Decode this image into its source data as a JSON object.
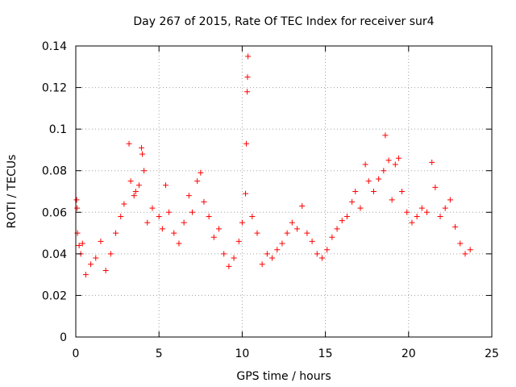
{
  "chart_data": {
    "type": "scatter",
    "title": "Day 267 of 2015, Rate Of TEC Index for receiver sur4",
    "xlabel": "GPS time / hours",
    "ylabel": "ROTI / TECUs",
    "xlim": [
      0,
      25
    ],
    "ylim": [
      0,
      0.14
    ],
    "x_ticks": [
      0,
      5,
      10,
      15,
      20,
      25
    ],
    "x_tick_labels": [
      "0",
      "5",
      "10",
      "15",
      "20",
      "25"
    ],
    "y_ticks": [
      0,
      0.02,
      0.04,
      0.06,
      0.08,
      0.1,
      0.12,
      0.14
    ],
    "y_tick_labels": [
      "0",
      "0.02",
      "0.04",
      "0.06",
      "0.08",
      "0.1",
      "0.12",
      "0.14"
    ],
    "grid": true,
    "marker": "+",
    "color": "#ff0000",
    "series": [
      {
        "name": "ROTI",
        "points": [
          [
            0.05,
            0.066
          ],
          [
            0.08,
            0.062
          ],
          [
            0.1,
            0.05
          ],
          [
            0.2,
            0.044
          ],
          [
            0.3,
            0.04
          ],
          [
            0.4,
            0.045
          ],
          [
            0.6,
            0.03
          ],
          [
            0.9,
            0.035
          ],
          [
            1.2,
            0.038
          ],
          [
            1.5,
            0.046
          ],
          [
            1.8,
            0.032
          ],
          [
            2.1,
            0.04
          ],
          [
            2.4,
            0.05
          ],
          [
            2.7,
            0.058
          ],
          [
            2.9,
            0.064
          ],
          [
            3.2,
            0.093
          ],
          [
            3.3,
            0.075
          ],
          [
            3.5,
            0.068
          ],
          [
            3.6,
            0.07
          ],
          [
            3.8,
            0.073
          ],
          [
            3.95,
            0.091
          ],
          [
            4.0,
            0.088
          ],
          [
            4.1,
            0.08
          ],
          [
            4.3,
            0.055
          ],
          [
            4.6,
            0.062
          ],
          [
            5.0,
            0.058
          ],
          [
            5.2,
            0.052
          ],
          [
            5.4,
            0.073
          ],
          [
            5.6,
            0.06
          ],
          [
            5.9,
            0.05
          ],
          [
            6.2,
            0.045
          ],
          [
            6.5,
            0.055
          ],
          [
            6.8,
            0.068
          ],
          [
            7.0,
            0.06
          ],
          [
            7.3,
            0.075
          ],
          [
            7.5,
            0.079
          ],
          [
            7.7,
            0.065
          ],
          [
            8.0,
            0.058
          ],
          [
            8.3,
            0.048
          ],
          [
            8.6,
            0.052
          ],
          [
            8.9,
            0.04
          ],
          [
            9.2,
            0.034
          ],
          [
            9.5,
            0.038
          ],
          [
            9.8,
            0.046
          ],
          [
            10.0,
            0.055
          ],
          [
            10.2,
            0.069
          ],
          [
            10.25,
            0.093
          ],
          [
            10.3,
            0.118
          ],
          [
            10.32,
            0.125
          ],
          [
            10.35,
            0.135
          ],
          [
            10.6,
            0.058
          ],
          [
            10.9,
            0.05
          ],
          [
            11.2,
            0.035
          ],
          [
            11.5,
            0.04
          ],
          [
            11.8,
            0.038
          ],
          [
            12.1,
            0.042
          ],
          [
            12.4,
            0.045
          ],
          [
            12.7,
            0.05
          ],
          [
            13.0,
            0.055
          ],
          [
            13.3,
            0.052
          ],
          [
            13.6,
            0.063
          ],
          [
            13.9,
            0.05
          ],
          [
            14.2,
            0.046
          ],
          [
            14.5,
            0.04
          ],
          [
            14.8,
            0.038
          ],
          [
            15.1,
            0.042
          ],
          [
            15.4,
            0.048
          ],
          [
            15.7,
            0.052
          ],
          [
            16.0,
            0.056
          ],
          [
            16.3,
            0.058
          ],
          [
            16.6,
            0.065
          ],
          [
            16.8,
            0.07
          ],
          [
            17.1,
            0.062
          ],
          [
            17.4,
            0.083
          ],
          [
            17.6,
            0.075
          ],
          [
            17.9,
            0.07
          ],
          [
            18.2,
            0.076
          ],
          [
            18.5,
            0.08
          ],
          [
            18.6,
            0.097
          ],
          [
            18.8,
            0.085
          ],
          [
            19.0,
            0.066
          ],
          [
            19.2,
            0.083
          ],
          [
            19.4,
            0.086
          ],
          [
            19.6,
            0.07
          ],
          [
            19.9,
            0.06
          ],
          [
            20.2,
            0.055
          ],
          [
            20.5,
            0.058
          ],
          [
            20.8,
            0.062
          ],
          [
            21.1,
            0.06
          ],
          [
            21.4,
            0.084
          ],
          [
            21.6,
            0.072
          ],
          [
            21.9,
            0.058
          ],
          [
            22.2,
            0.062
          ],
          [
            22.5,
            0.066
          ],
          [
            22.8,
            0.053
          ],
          [
            23.1,
            0.045
          ],
          [
            23.4,
            0.04
          ],
          [
            23.7,
            0.042
          ]
        ]
      }
    ]
  }
}
